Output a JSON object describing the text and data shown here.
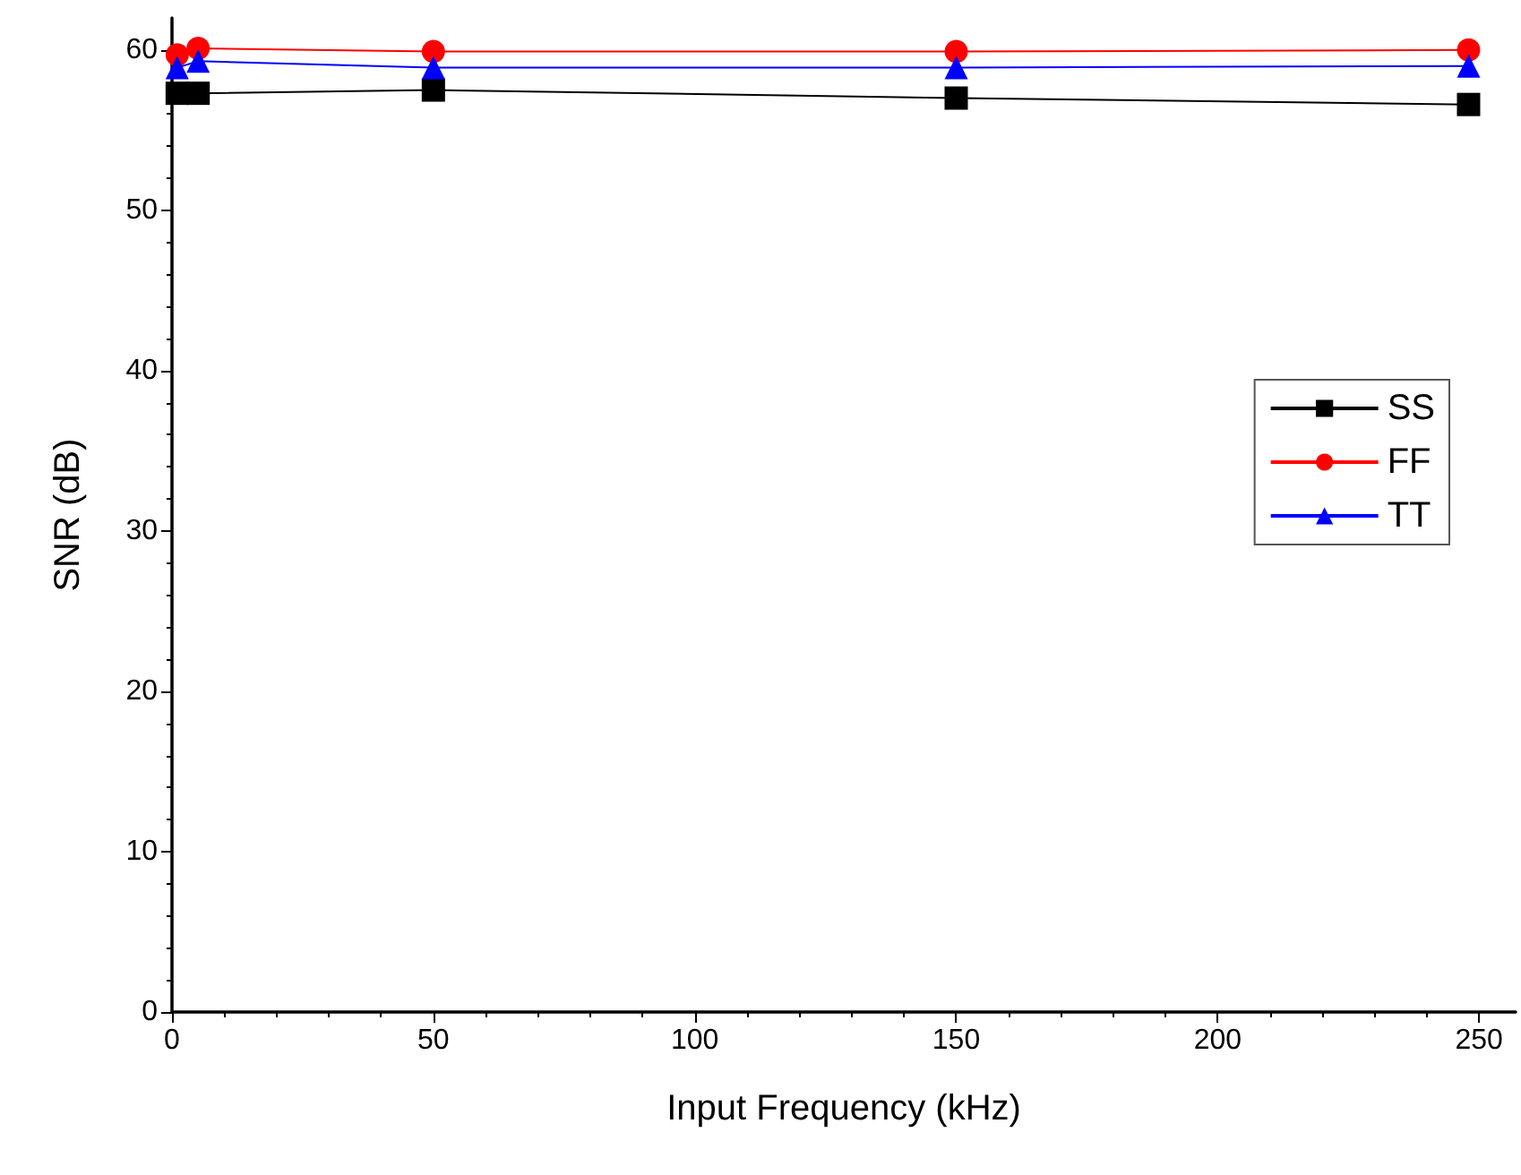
{
  "chart_data": {
    "type": "line",
    "xlabel": "Input Frequency (kHz)",
    "ylabel": "SNR (dB)",
    "x": [
      1,
      5,
      50,
      150,
      248
    ],
    "series": [
      {
        "name": "SS",
        "color": "#000000",
        "marker": "square",
        "values": [
          57.3,
          57.3,
          57.5,
          57.0,
          56.6
        ]
      },
      {
        "name": "FF",
        "color": "#ff0000",
        "marker": "circle",
        "values": [
          59.7,
          60.1,
          59.9,
          59.9,
          60.0
        ]
      },
      {
        "name": "TT",
        "color": "#0000ff",
        "marker": "triangle",
        "values": [
          58.9,
          59.3,
          58.9,
          58.9,
          59.0
        ]
      }
    ],
    "xlim": [
      0,
      257
    ],
    "xticks": [
      0,
      50,
      100,
      150,
      200,
      250
    ],
    "ylim": [
      0,
      62
    ],
    "yticks": [
      0,
      10,
      20,
      30,
      40,
      50,
      60
    ],
    "grid": false,
    "legend": "right",
    "line_style": "solid"
  }
}
